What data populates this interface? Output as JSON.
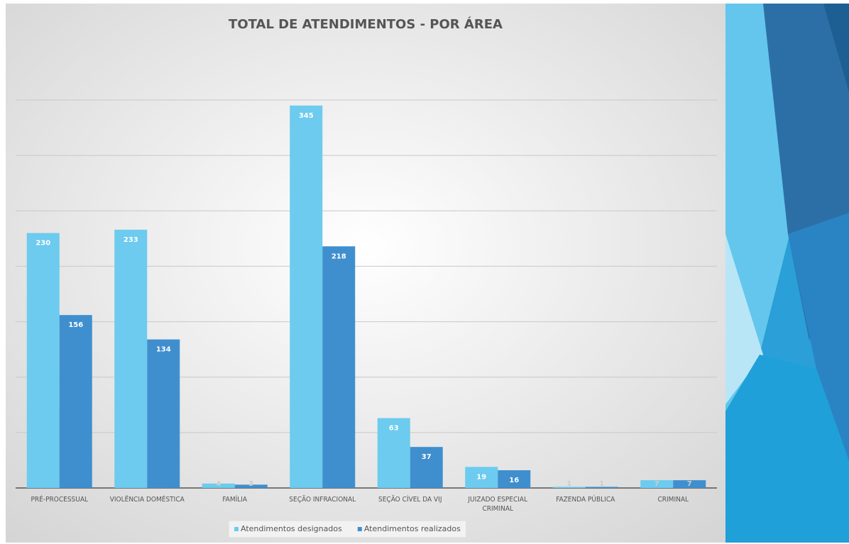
{
  "chart_data": {
    "type": "bar",
    "title": "TOTAL DE ATENDIMENTOS - POR ÁREA",
    "categories": [
      "PRÉ-PROCESSUAL",
      "VIOLÊNCIA DOMÉSTICA",
      "FAMÍLIA",
      "SEÇÃO INFRACIONAL",
      "SEÇÃO CÍVEL DA VIJ",
      "JUIZADO ESPECIAL CRIMINAL",
      "FAZENDA PÚBLICA",
      "CRIMINAL"
    ],
    "series": [
      {
        "name": "Atendimentos designados",
        "color": "#6ccbee",
        "values": [
          230,
          233,
          4,
          345,
          63,
          19,
          1,
          7
        ]
      },
      {
        "name": "Atendimentos realizados",
        "color": "#3f8fcf",
        "values": [
          156,
          134,
          3,
          218,
          37,
          16,
          1,
          7
        ]
      }
    ],
    "ylim": [
      0,
      350
    ],
    "yticks": [
      0,
      50,
      100,
      150,
      200,
      250,
      300,
      350
    ],
    "grid": true,
    "legend": "bottom"
  }
}
